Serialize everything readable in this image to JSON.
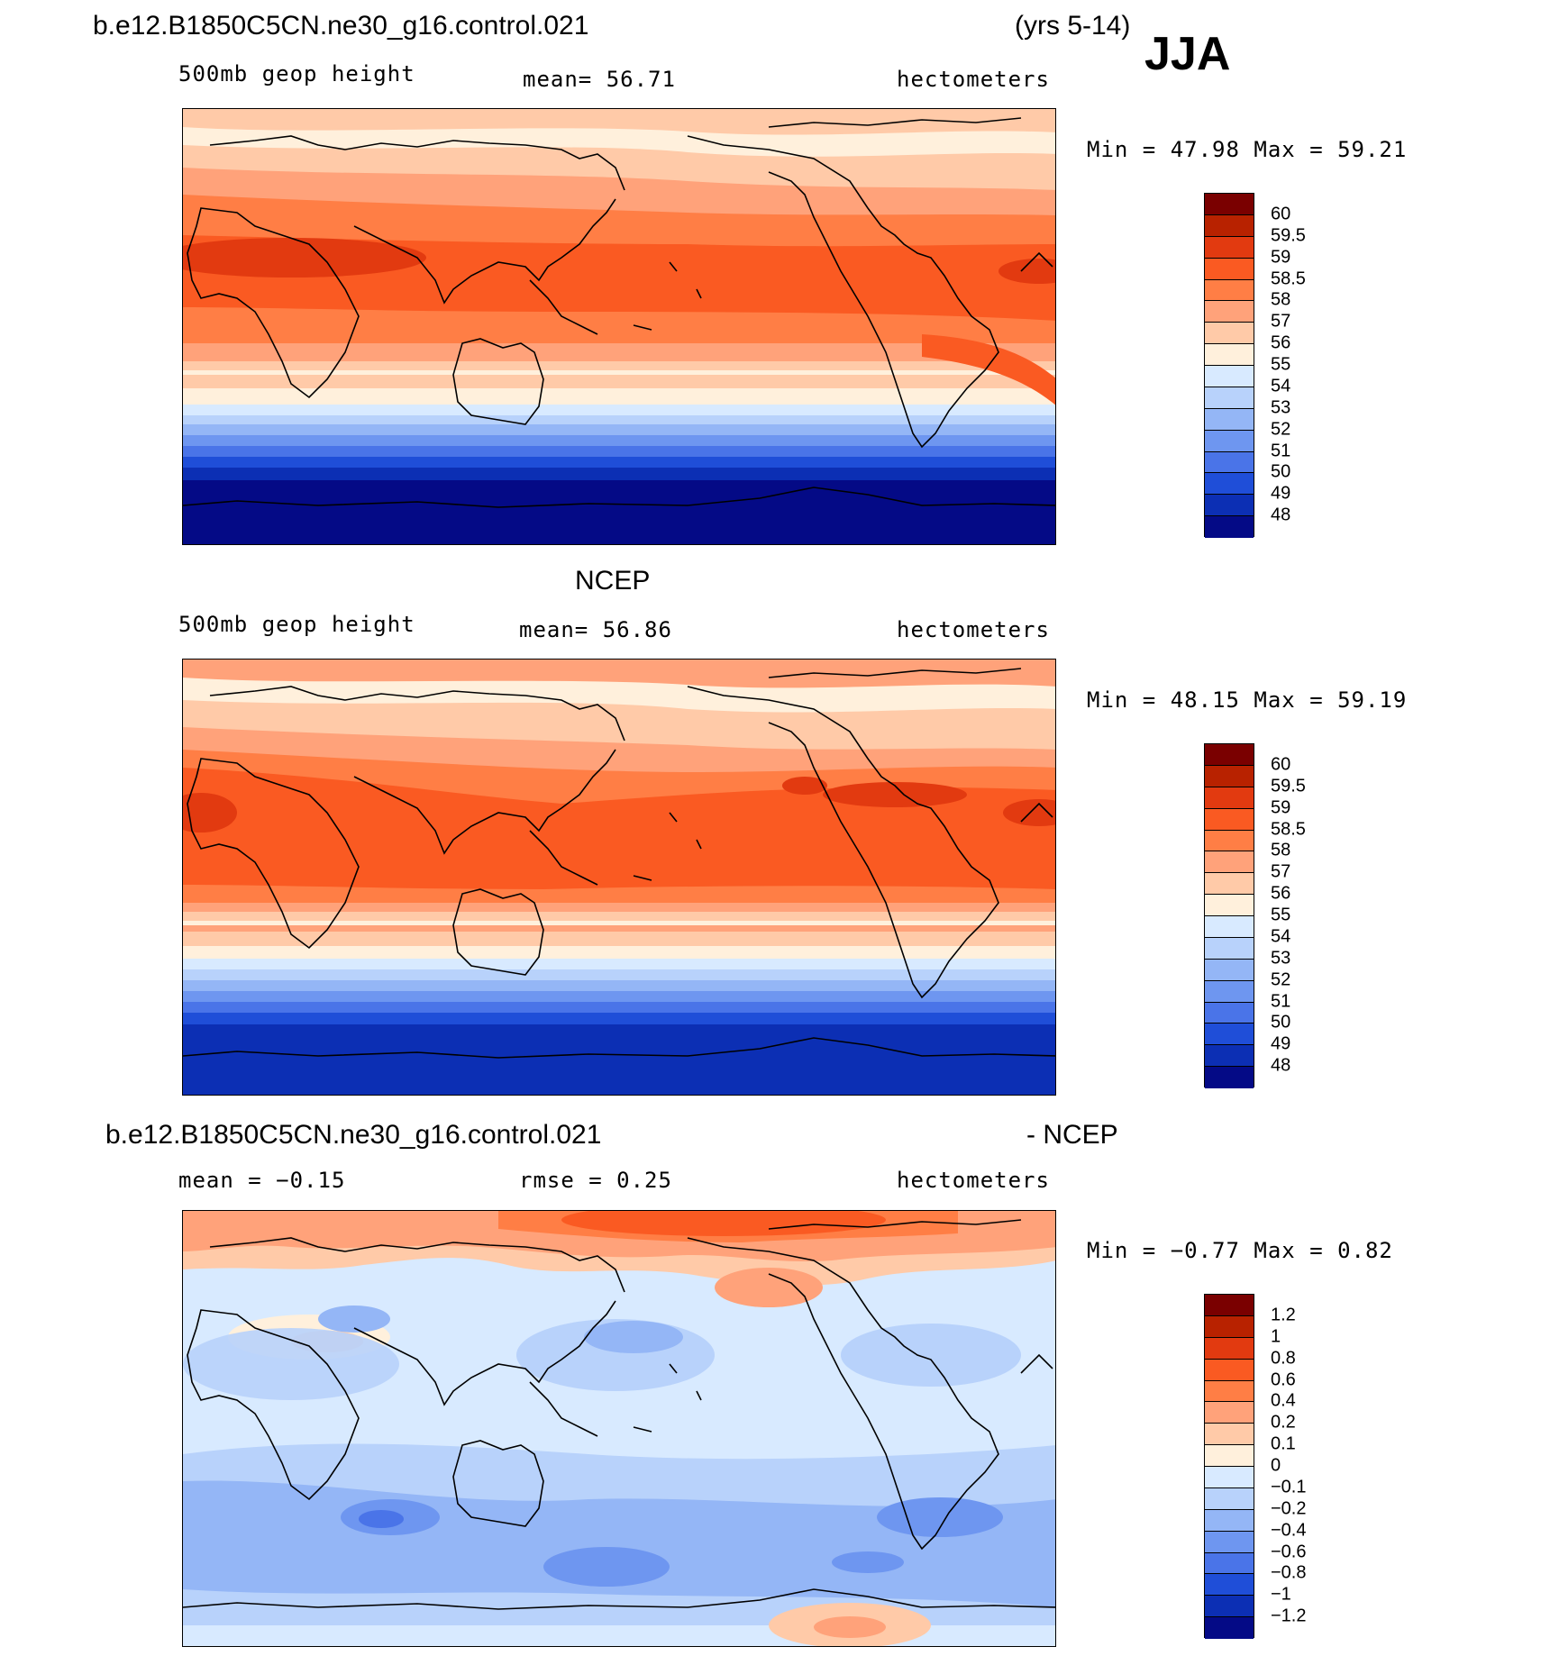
{
  "header": {
    "case_name": "b.e12.B1850C5CN.ne30_g16.control.021",
    "years": "(yrs 5-14)",
    "season": "JJA"
  },
  "panels": [
    {
      "id": "model",
      "title_left": "",
      "title_right": "",
      "left_text": "500mb geop height",
      "mid_text": "mean=   56.71",
      "units": "hectometers",
      "minmax": "Min =   47.98  Max =   59.21",
      "legend_labels": [
        "60",
        "59.5",
        "59",
        "58.5",
        "58",
        "57",
        "56",
        "55",
        "54",
        "53",
        "52",
        "51",
        "50",
        "49",
        "48"
      ]
    },
    {
      "id": "obs",
      "title_left": "NCEP",
      "title_right": "",
      "left_text": "500mb geop height",
      "mid_text": "mean=   56.86",
      "units": "hectometers",
      "minmax": "Min =   48.15  Max =   59.19",
      "legend_labels": [
        "60",
        "59.5",
        "59",
        "58.5",
        "58",
        "57",
        "56",
        "55",
        "54",
        "53",
        "52",
        "51",
        "50",
        "49",
        "48"
      ]
    },
    {
      "id": "diff",
      "title_left": "b.e12.B1850C5CN.ne30_g16.control.021",
      "title_right": "- NCEP",
      "left_text": "mean =   −0.15",
      "mid_text": "rmse =    0.25",
      "units": "hectometers",
      "minmax": "Min =   −0.77  Max =    0.82",
      "legend_labels": [
        "1.2",
        "1",
        "0.8",
        "0.6",
        "0.4",
        "0.2",
        "0.1",
        "0",
        "−0.1",
        "−0.2",
        "−0.4",
        "−0.6",
        "−0.8",
        "−1",
        "−1.2"
      ]
    }
  ],
  "colors": {
    "legend_16": [
      "#7a0000",
      "#b82200",
      "#e23a10",
      "#fa5a22",
      "#ff7e45",
      "#ffa27a",
      "#ffcaa8",
      "#fff0dc",
      "#d8eaff",
      "#b8d2fb",
      "#94b6f6",
      "#6e96f0",
      "#4a74e8",
      "#1f4ed8",
      "#0c2fb4",
      "#040a86"
    ],
    "coastline": "#000000"
  }
}
